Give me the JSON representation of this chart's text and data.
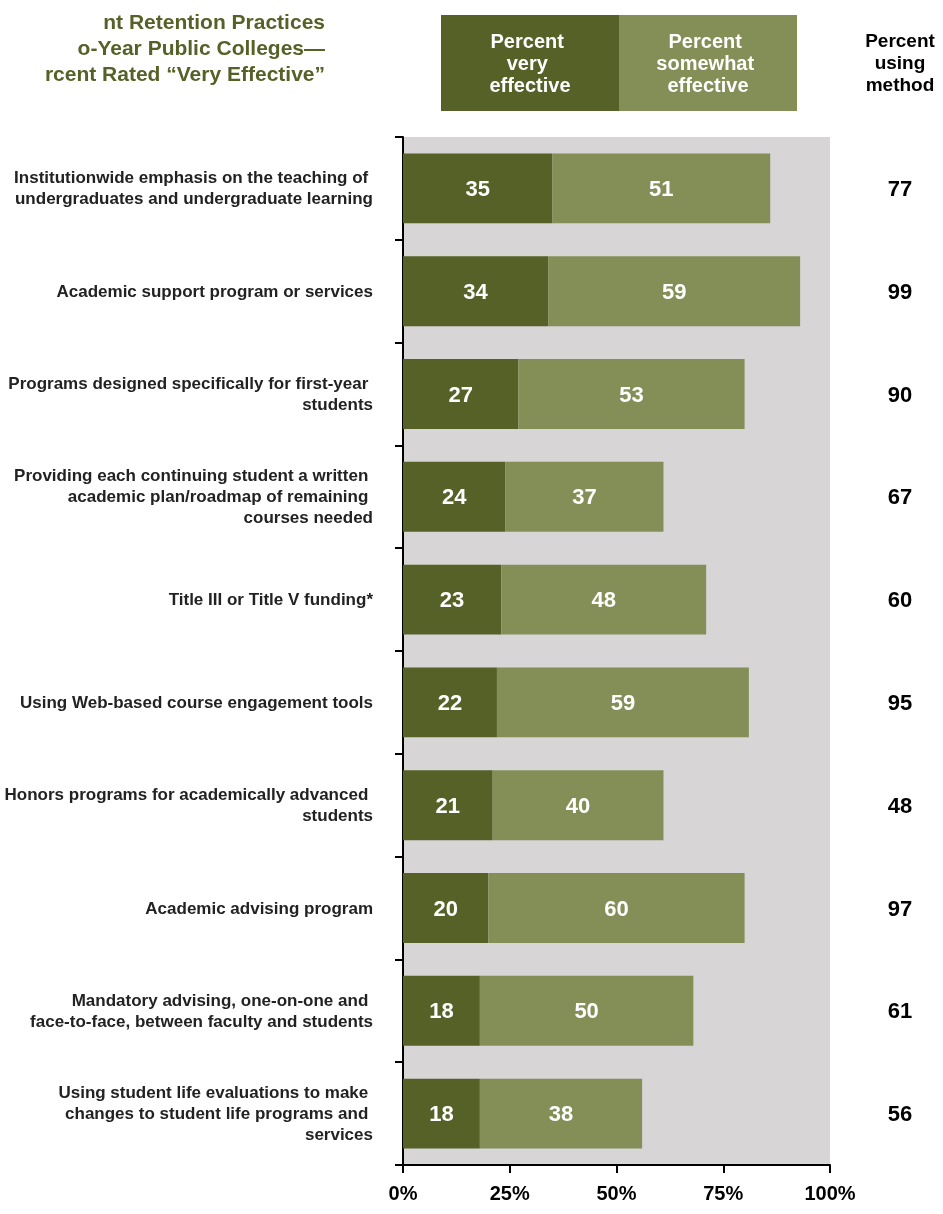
{
  "chart_data": {
    "type": "bar",
    "orientation": "horizontal",
    "stacked": true,
    "data_labels": true,
    "legend": "top",
    "title": "nt Retention Practices\no-Year Public Colleges—\nrcent Rated “Very Effective”",
    "categories": [
      "Institutionwide emphasis on the teaching of undergraduates and undergraduate learning",
      "Academic support program or services",
      "Programs designed specifically for first-year students",
      "Providing each continuing student a written academic plan/roadmap of remaining courses needed",
      "Title III or Title V funding*",
      "Using Web-based course engagement tools",
      "Honors programs for academically advanced students",
      "Academic advising program",
      "Mandatory advising, one-on-one and face-to-face, between faculty and students",
      "Using student life evaluations to make changes to student life programs and services"
    ],
    "series": [
      {
        "name": "Percent very effective",
        "color": "#556127",
        "values": [
          35,
          34,
          27,
          24,
          23,
          22,
          21,
          20,
          18,
          18
        ]
      },
      {
        "name": "Percent somewhat effective",
        "color": "#848f57",
        "values": [
          51,
          59,
          53,
          37,
          48,
          59,
          40,
          60,
          50,
          38
        ]
      }
    ],
    "xlim": [
      0,
      100
    ],
    "xticks": [
      {
        "value": 0,
        "label": "0%"
      },
      {
        "value": 25,
        "label": "25%"
      },
      {
        "value": 50,
        "label": "50%"
      },
      {
        "value": 75,
        "label": "75%"
      },
      {
        "value": 100,
        "label": "100%"
      }
    ],
    "annotations": [
      "Percent using method",
      "77",
      "99",
      "90",
      "67",
      "60",
      "95",
      "48",
      "97",
      "61",
      "56"
    ]
  }
}
